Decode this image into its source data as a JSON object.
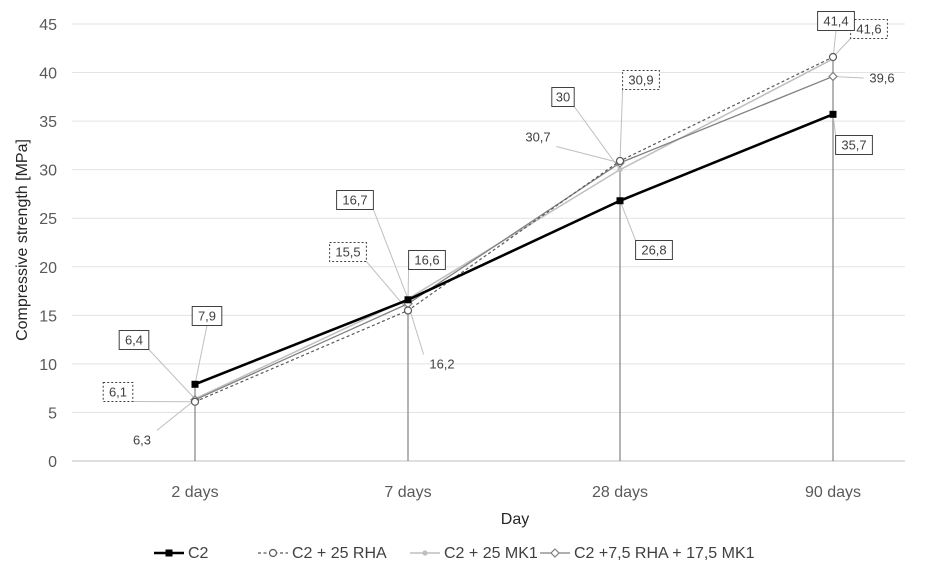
{
  "chart_data": {
    "type": "line",
    "categories": [
      "2 days",
      "7 days",
      "28 days",
      "90 days"
    ],
    "xlabel": "Day",
    "ylabel": "Compressive strength [MPa]",
    "ylim": [
      0,
      45
    ],
    "yticks": [
      0,
      5,
      10,
      15,
      20,
      25,
      30,
      35,
      40,
      45
    ],
    "grid": "horizontal",
    "legend_position": "bottom",
    "series": [
      {
        "name": "C2",
        "values": [
          7.9,
          16.6,
          26.8,
          35.7
        ],
        "labels": [
          "7,9",
          "16,6",
          "26,8",
          "35,7"
        ],
        "color": "#000000",
        "style": "solid-thick",
        "marker": "square"
      },
      {
        "name": "C2 + 25 RHA",
        "values": [
          6.1,
          15.5,
          30.9,
          41.6
        ],
        "labels": [
          "6,1",
          "15,5",
          "30,9",
          "41,6"
        ],
        "color": "#595959",
        "style": "dotted",
        "marker": "open-circle"
      },
      {
        "name": "C2 + 25 MK1",
        "values": [
          6.4,
          16.7,
          30.0,
          41.4
        ],
        "labels": [
          "6,4",
          "16,7",
          "30",
          "41,4"
        ],
        "color": "#bfbfbf",
        "style": "solid",
        "marker": "dot"
      },
      {
        "name": "C2 +7,5 RHA + 17,5 MK1",
        "values": [
          6.3,
          16.2,
          30.7,
          39.6
        ],
        "labels": [
          "6,3",
          "16,2",
          "30,7",
          "39,6"
        ],
        "color": "#808080",
        "style": "solid",
        "marker": "open-diamond"
      }
    ]
  }
}
